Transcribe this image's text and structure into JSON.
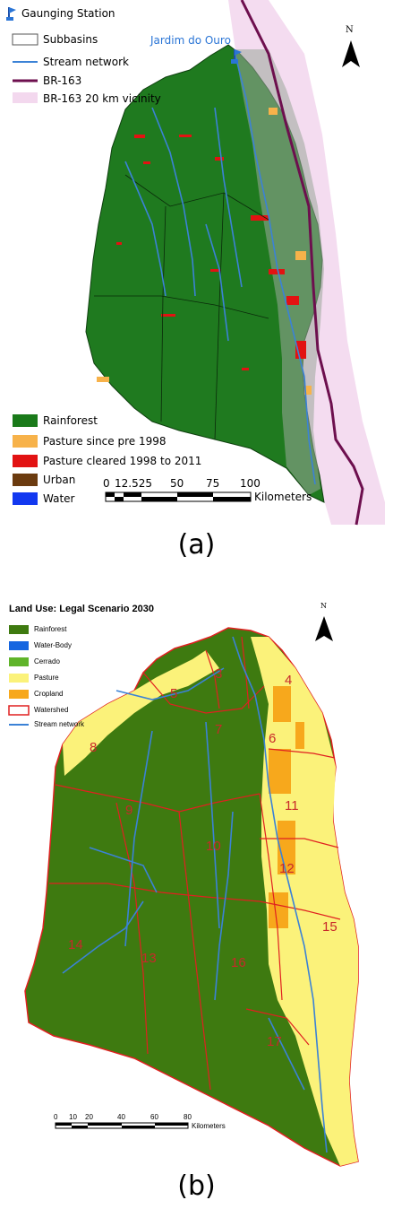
{
  "panel_a": {
    "legend_top": [
      {
        "label": "Gaunging Station",
        "icon": "flag-icon"
      },
      {
        "label": "Subbasins",
        "icon": "polygon-outline-swatch"
      },
      {
        "label": "Stream network",
        "icon": "line-swatch",
        "color": "#3b82d6"
      },
      {
        "label": "BR-163",
        "icon": "line-swatch",
        "color": "#6d0f4e"
      },
      {
        "label": "BR-163 20 km vicinity",
        "icon": "area-swatch",
        "color": "#f3d8ee"
      }
    ],
    "station_label": "Jardim do Ouro",
    "north_label": "N",
    "legend_bottom": [
      {
        "label": "Rainforest",
        "color": "#1a7a1a"
      },
      {
        "label": "Pasture since pre 1998",
        "color": "#f7b24a"
      },
      {
        "label": "Pasture cleared 1998 to 2011",
        "color": "#e21212"
      },
      {
        "label": "Urban",
        "color": "#6b3b0f"
      },
      {
        "label": "Water",
        "color": "#1238f0"
      }
    ],
    "scale": {
      "ticks": [
        "0",
        "12.525",
        "50",
        "75",
        "100"
      ],
      "unit": "Kilometers"
    },
    "caption": "(a)"
  },
  "panel_b": {
    "title": "Land Use: Legal Scenario 2030",
    "north_label": "N",
    "legend": [
      {
        "label": "Rainforest",
        "color": "#3e7a10"
      },
      {
        "label": "Water-Body",
        "color": "#1565e0"
      },
      {
        "label": "Cerrado",
        "color": "#5fb42a"
      },
      {
        "label": "Pasture",
        "color": "#fbf27a"
      },
      {
        "label": "Cropland",
        "color": "#f7a81c"
      },
      {
        "label": "Watershed",
        "color": "#e02020"
      },
      {
        "label": "Stream network",
        "color": "#3b82d6"
      }
    ],
    "subbasin_numbers": [
      "3",
      "4",
      "5",
      "6",
      "7",
      "8",
      "9",
      "10",
      "11",
      "12",
      "13",
      "14",
      "15",
      "16",
      "17"
    ],
    "scale": {
      "ticks": [
        "0",
        "10",
        "20",
        "40",
        "60",
        "80"
      ],
      "unit": "Kilometers"
    },
    "caption": "(b)"
  }
}
